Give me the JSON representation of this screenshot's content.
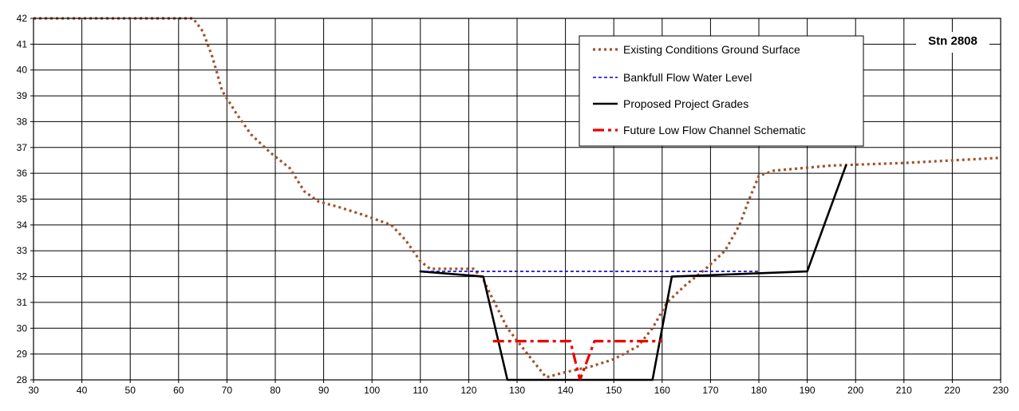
{
  "chart_data": {
    "type": "line",
    "title": "",
    "station_label": "Stn 2808",
    "xlabel": "",
    "ylabel": "",
    "xlim": [
      30,
      230
    ],
    "ylim": [
      28,
      42
    ],
    "x_ticks": [
      30,
      40,
      50,
      60,
      70,
      80,
      90,
      100,
      110,
      120,
      130,
      140,
      150,
      160,
      170,
      180,
      190,
      200,
      210,
      220,
      230
    ],
    "y_ticks": [
      28,
      29,
      30,
      31,
      32,
      33,
      34,
      35,
      36,
      37,
      38,
      39,
      40,
      41,
      42
    ],
    "grid": true,
    "legend_position": "top-right",
    "colors": {
      "existing": "#a0522d",
      "bankfull": "#0000cc",
      "proposed": "#000000",
      "future": "#ee0000",
      "grid": "#000000"
    },
    "series": [
      {
        "name": "Existing Conditions Ground Surface",
        "style": "dotted",
        "points": [
          [
            30,
            42
          ],
          [
            63,
            42
          ],
          [
            65,
            41.5
          ],
          [
            67,
            40.5
          ],
          [
            69,
            39.2
          ],
          [
            72,
            38.3
          ],
          [
            75,
            37.5
          ],
          [
            79,
            36.8
          ],
          [
            83,
            36.2
          ],
          [
            86,
            35.3
          ],
          [
            89,
            34.9
          ],
          [
            93,
            34.7
          ],
          [
            98,
            34.4
          ],
          [
            104,
            34.0
          ],
          [
            107,
            33.4
          ],
          [
            110,
            32.6
          ],
          [
            112,
            32.3
          ],
          [
            121,
            32.3
          ],
          [
            123,
            31.9
          ],
          [
            124,
            31.5
          ],
          [
            128,
            30.0
          ],
          [
            133,
            28.8
          ],
          [
            136,
            28.1
          ],
          [
            140,
            28.3
          ],
          [
            145,
            28.5
          ],
          [
            150,
            28.8
          ],
          [
            155,
            29.3
          ],
          [
            158,
            30.0
          ],
          [
            161,
            31.0
          ],
          [
            165,
            31.7
          ],
          [
            169,
            32.3
          ],
          [
            173,
            33.0
          ],
          [
            176,
            34.0
          ],
          [
            178,
            35.0
          ],
          [
            180,
            35.9
          ],
          [
            183,
            36.1
          ],
          [
            195,
            36.3
          ],
          [
            210,
            36.4
          ],
          [
            230,
            36.6
          ]
        ]
      },
      {
        "name": "Bankfull Flow Water Level",
        "style": "dashed",
        "points": [
          [
            111,
            32.2
          ],
          [
            180,
            32.2
          ]
        ]
      },
      {
        "name": "Proposed Project Grades",
        "style": "solid",
        "points": [
          [
            110,
            32.2
          ],
          [
            123,
            32.0
          ],
          [
            128,
            28.0
          ],
          [
            158,
            28.0
          ],
          [
            162,
            32.0
          ],
          [
            190,
            32.2
          ],
          [
            198,
            36.3
          ]
        ]
      },
      {
        "name": "Future Low Flow Channel Schematic",
        "style": "dash-dot",
        "points": [
          [
            125,
            29.5
          ],
          [
            141,
            29.5
          ],
          [
            143,
            28.0
          ],
          [
            146,
            29.5
          ],
          [
            160,
            29.5
          ]
        ]
      }
    ]
  }
}
